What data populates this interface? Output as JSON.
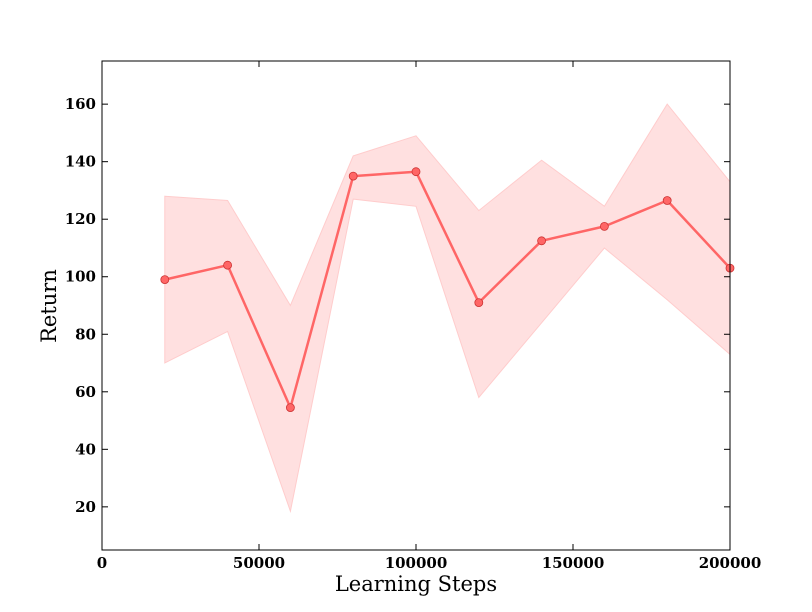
{
  "chart_data": {
    "type": "line",
    "title": "",
    "xlabel": "Learning Steps",
    "ylabel": "Return",
    "xlim": [
      0,
      200000
    ],
    "ylim": [
      5,
      175
    ],
    "xticks": [
      0,
      50000,
      100000,
      150000,
      200000
    ],
    "xtick_labels": [
      "0",
      "50000",
      "100000",
      "150000",
      "200000"
    ],
    "yticks": [
      20,
      40,
      60,
      80,
      100,
      120,
      140,
      160
    ],
    "ytick_labels": [
      "20",
      "40",
      "60",
      "80",
      "100",
      "120",
      "140",
      "160"
    ],
    "grid": false,
    "legend": "none",
    "series": [
      {
        "x": [
          20000,
          40000,
          60000,
          80000,
          100000,
          120000,
          140000,
          160000,
          180000,
          200000
        ],
        "y": [
          99,
          104,
          54.5,
          135,
          136.5,
          91,
          112.5,
          117.5,
          126.5,
          103
        ],
        "lower": [
          70,
          81,
          18.5,
          127,
          124.5,
          58,
          84,
          110,
          92,
          73
        ],
        "upper": [
          128,
          126.5,
          90,
          142,
          149,
          123,
          140.5,
          124.5,
          160,
          133
        ],
        "color": "#ff6666",
        "band_color": "#ffcccc"
      }
    ]
  }
}
